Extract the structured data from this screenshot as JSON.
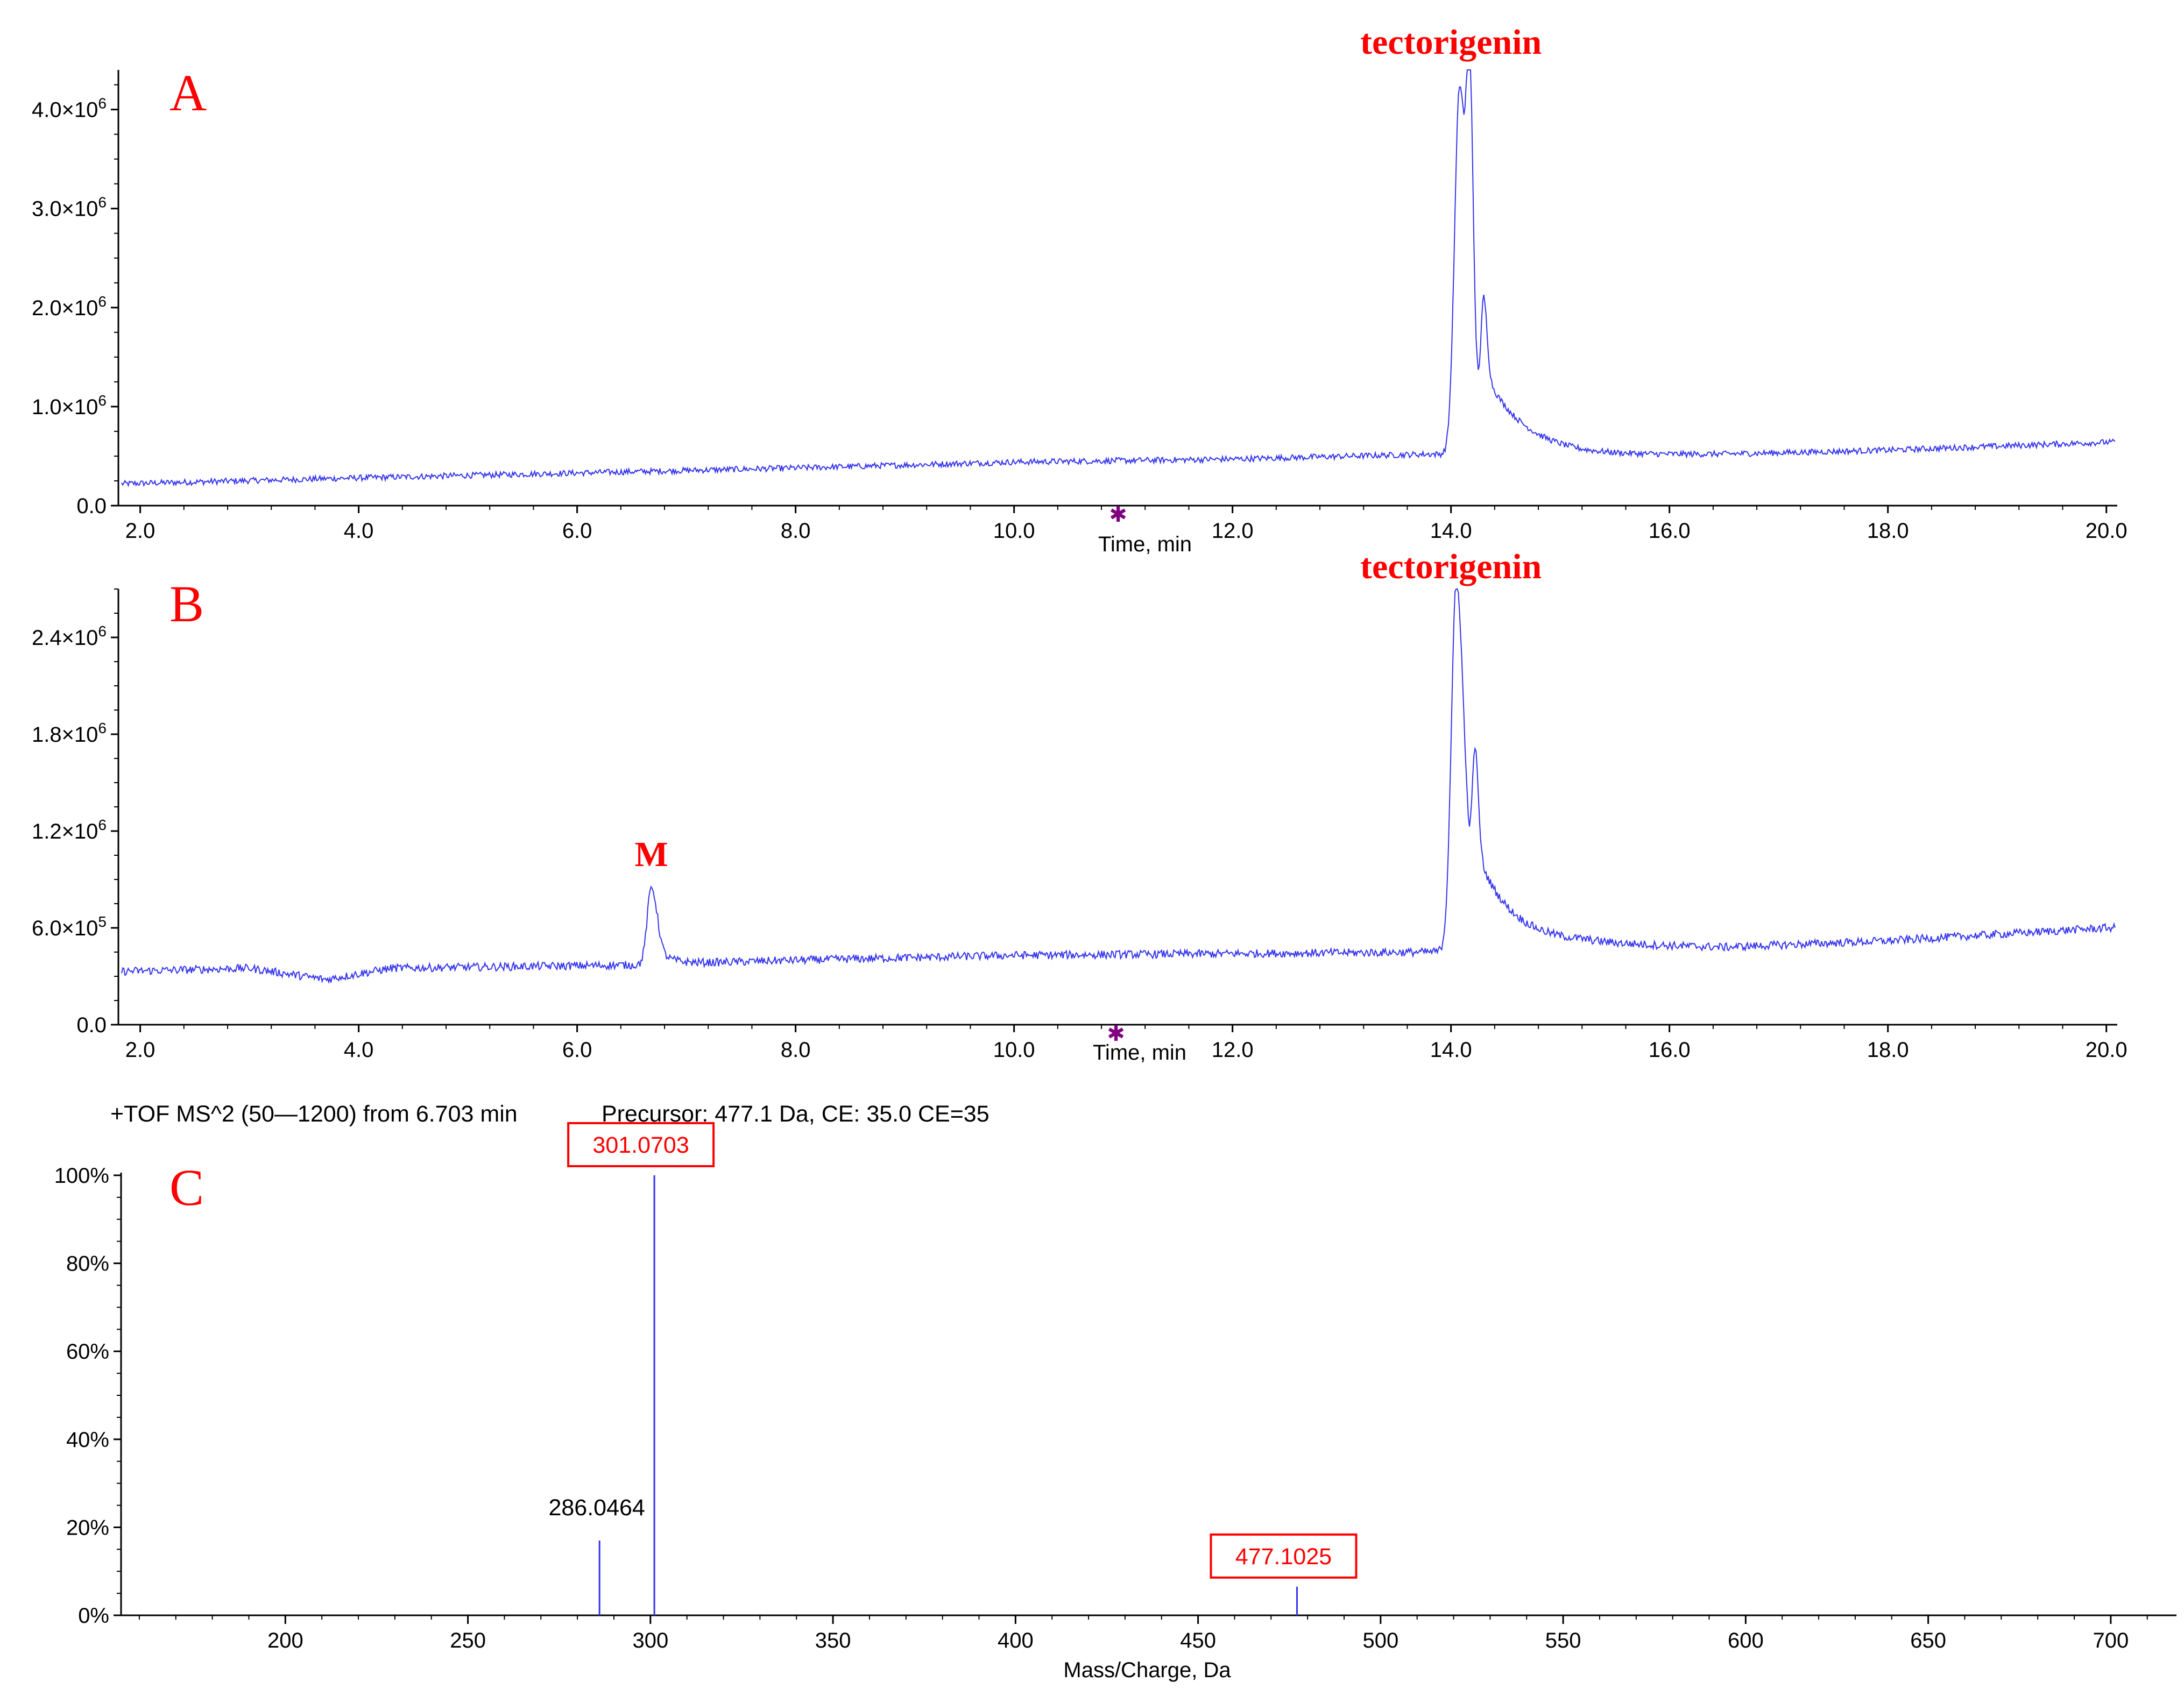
{
  "chart_data": [
    {
      "panel": "A",
      "type": "line",
      "xlabel": "Time, min",
      "xlim": [
        1.8,
        20.1
      ],
      "ylim": [
        0,
        4.4
      ],
      "x_ticks": [
        "2.0",
        "4.0",
        "6.0",
        "8.0",
        "10.0",
        "12.0",
        "14.0",
        "16.0",
        "18.0",
        "20.0"
      ],
      "y_ticks": [
        {
          "v": 0,
          "base": "0.0",
          "exp": ""
        },
        {
          "v": 1,
          "base": "1.0×10",
          "exp": "6"
        },
        {
          "v": 2,
          "base": "2.0×10",
          "exp": "6"
        },
        {
          "v": 3,
          "base": "3.0×10",
          "exp": "6"
        },
        {
          "v": 4,
          "base": "4.0×10",
          "exp": "6"
        }
      ],
      "y_unit_note": "y values in units of 10^6",
      "series_color": "#3333ee",
      "baseline": [
        [
          1.8,
          0.22
        ],
        [
          4.0,
          0.28
        ],
        [
          6.0,
          0.33
        ],
        [
          8.0,
          0.38
        ],
        [
          10.0,
          0.44
        ],
        [
          12.0,
          0.47
        ],
        [
          13.8,
          0.52
        ],
        [
          15.2,
          0.5
        ],
        [
          16.5,
          0.52
        ],
        [
          18.0,
          0.56
        ],
        [
          20.0,
          0.64
        ]
      ],
      "noise": 0.03,
      "peaks": [
        {
          "x": 14.08,
          "y": 4.25,
          "width": 0.06,
          "tail": 0.35
        },
        {
          "x": 14.17,
          "y": 3.2,
          "width": 0.03,
          "tail": 0.0
        },
        {
          "x": 14.3,
          "y": 1.55,
          "width": 0.03,
          "tail": 0.4
        }
      ],
      "annotations": [
        {
          "text": "tectorigenin",
          "x": 14.0
        }
      ]
    },
    {
      "panel": "B",
      "type": "line",
      "xlabel": "Time, min",
      "xlim": [
        1.8,
        20.1
      ],
      "ylim": [
        0,
        2.7
      ],
      "x_ticks": [
        "2.0",
        "4.0",
        "6.0",
        "8.0",
        "10.0",
        "12.0",
        "14.0",
        "16.0",
        "18.0",
        "20.0"
      ],
      "y_ticks": [
        {
          "v": 0,
          "base": "0.0",
          "exp": ""
        },
        {
          "v": 0.6,
          "base": "6.0×10",
          "exp": "5"
        },
        {
          "v": 1.2,
          "base": "1.2×10",
          "exp": "6"
        },
        {
          "v": 1.8,
          "base": "1.8×10",
          "exp": "6"
        },
        {
          "v": 2.4,
          "base": "2.4×10",
          "exp": "6"
        }
      ],
      "y_unit_note": "y values in units of 10^6",
      "series_color": "#3333ee",
      "baseline": [
        [
          1.8,
          0.33
        ],
        [
          3.0,
          0.35
        ],
        [
          3.7,
          0.28
        ],
        [
          4.3,
          0.35
        ],
        [
          6.5,
          0.37
        ],
        [
          8.0,
          0.4
        ],
        [
          10.0,
          0.43
        ],
        [
          13.8,
          0.45
        ],
        [
          15.2,
          0.5
        ],
        [
          16.5,
          0.48
        ],
        [
          18.0,
          0.52
        ],
        [
          20.0,
          0.6
        ]
      ],
      "noise": 0.025,
      "peaks": [
        {
          "x": 6.68,
          "y": 0.85,
          "width": 0.05,
          "tail": 0.12
        },
        {
          "x": 14.05,
          "y": 2.75,
          "width": 0.06,
          "tail": 0.35
        },
        {
          "x": 14.22,
          "y": 1.3,
          "width": 0.03,
          "tail": 0.3
        }
      ],
      "annotations": [
        {
          "text": "M",
          "x": 6.68
        },
        {
          "text": "tectorigenin",
          "x": 14.0
        }
      ]
    },
    {
      "panel": "C",
      "type": "bar",
      "header": "+TOF MS^2 (50—1200) from 6.703 min",
      "precursor": "Precursor: 477.1 Da, CE: 35.0 CE=35",
      "xlabel": "Mass/Charge, Da",
      "xlim": [
        155,
        718
      ],
      "ylim": [
        0,
        100
      ],
      "x_ticks": [
        "200",
        "250",
        "300",
        "350",
        "400",
        "450",
        "500",
        "550",
        "600",
        "650",
        "700"
      ],
      "y_ticks": [
        "0%",
        "20%",
        "40%",
        "60%",
        "80%",
        "100%"
      ],
      "series_color": "#3333ee",
      "sticks": [
        {
          "mz": 286.0464,
          "intensity": 17
        },
        {
          "mz": 301.0703,
          "intensity": 100
        },
        {
          "mz": 477.1025,
          "intensity": 6.5
        }
      ],
      "labels": [
        {
          "text": "286.0464",
          "boxed": false
        },
        {
          "text": "301.0703",
          "boxed": true
        },
        {
          "text": "477.1025",
          "boxed": true
        }
      ]
    }
  ]
}
